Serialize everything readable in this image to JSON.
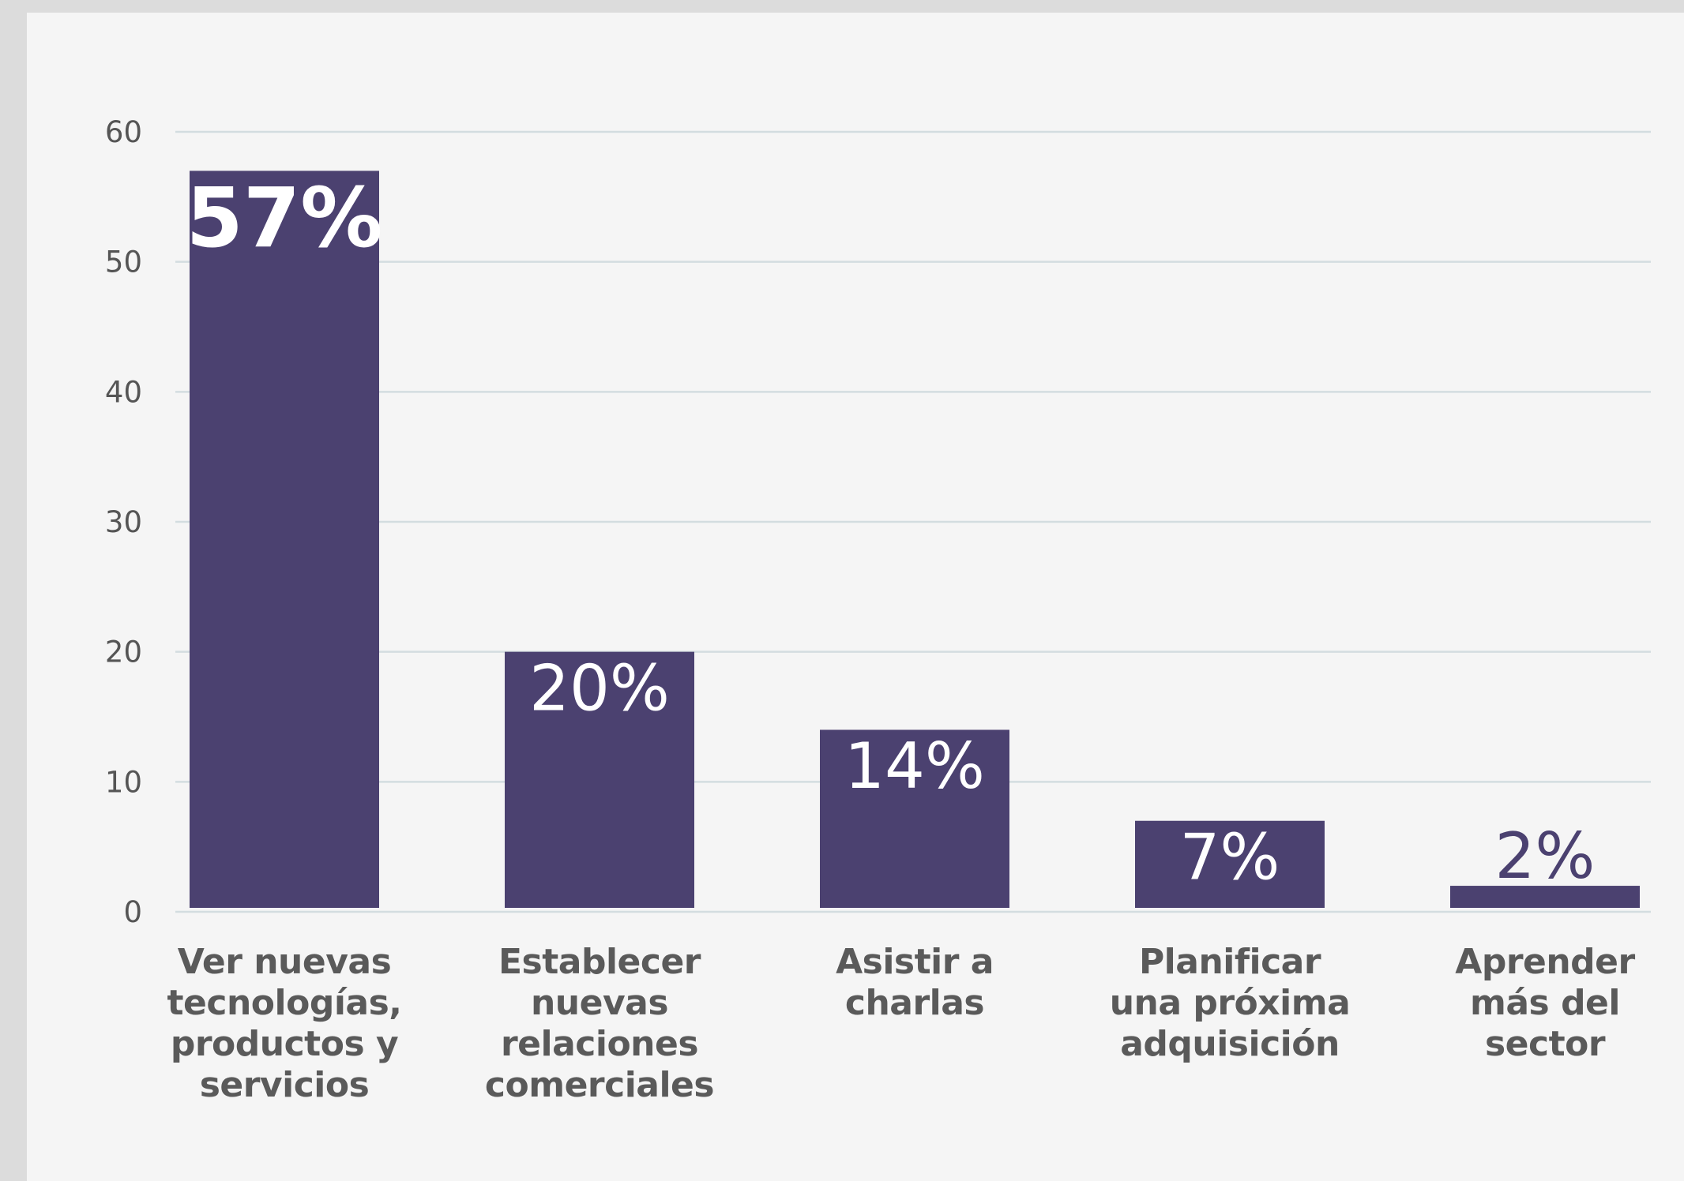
{
  "chart_data": {
    "type": "bar",
    "categories": [
      "Ver nuevas\ntecnologías,\nproductos y\nservicios",
      "Establecer\nnuevas\nrelaciones\ncomerciales",
      "Asistir a\ncharlas",
      "Planificar\nuna próxima\nadquisición",
      "Aprender\nmás del\nsector"
    ],
    "values": [
      57,
      20,
      14,
      7,
      2
    ],
    "data_labels": [
      "57%",
      "20%",
      "14%",
      "7%",
      "2%"
    ],
    "yticks": [
      "0",
      "10",
      "20",
      "30",
      "40",
      "50",
      "60"
    ],
    "ylim": [
      0,
      60
    ],
    "grid": true,
    "colors": {
      "bar": "#4b4170",
      "label_inside": "#ffffff",
      "label_outside": "#4b4170",
      "grid": "#d3dde0"
    }
  }
}
